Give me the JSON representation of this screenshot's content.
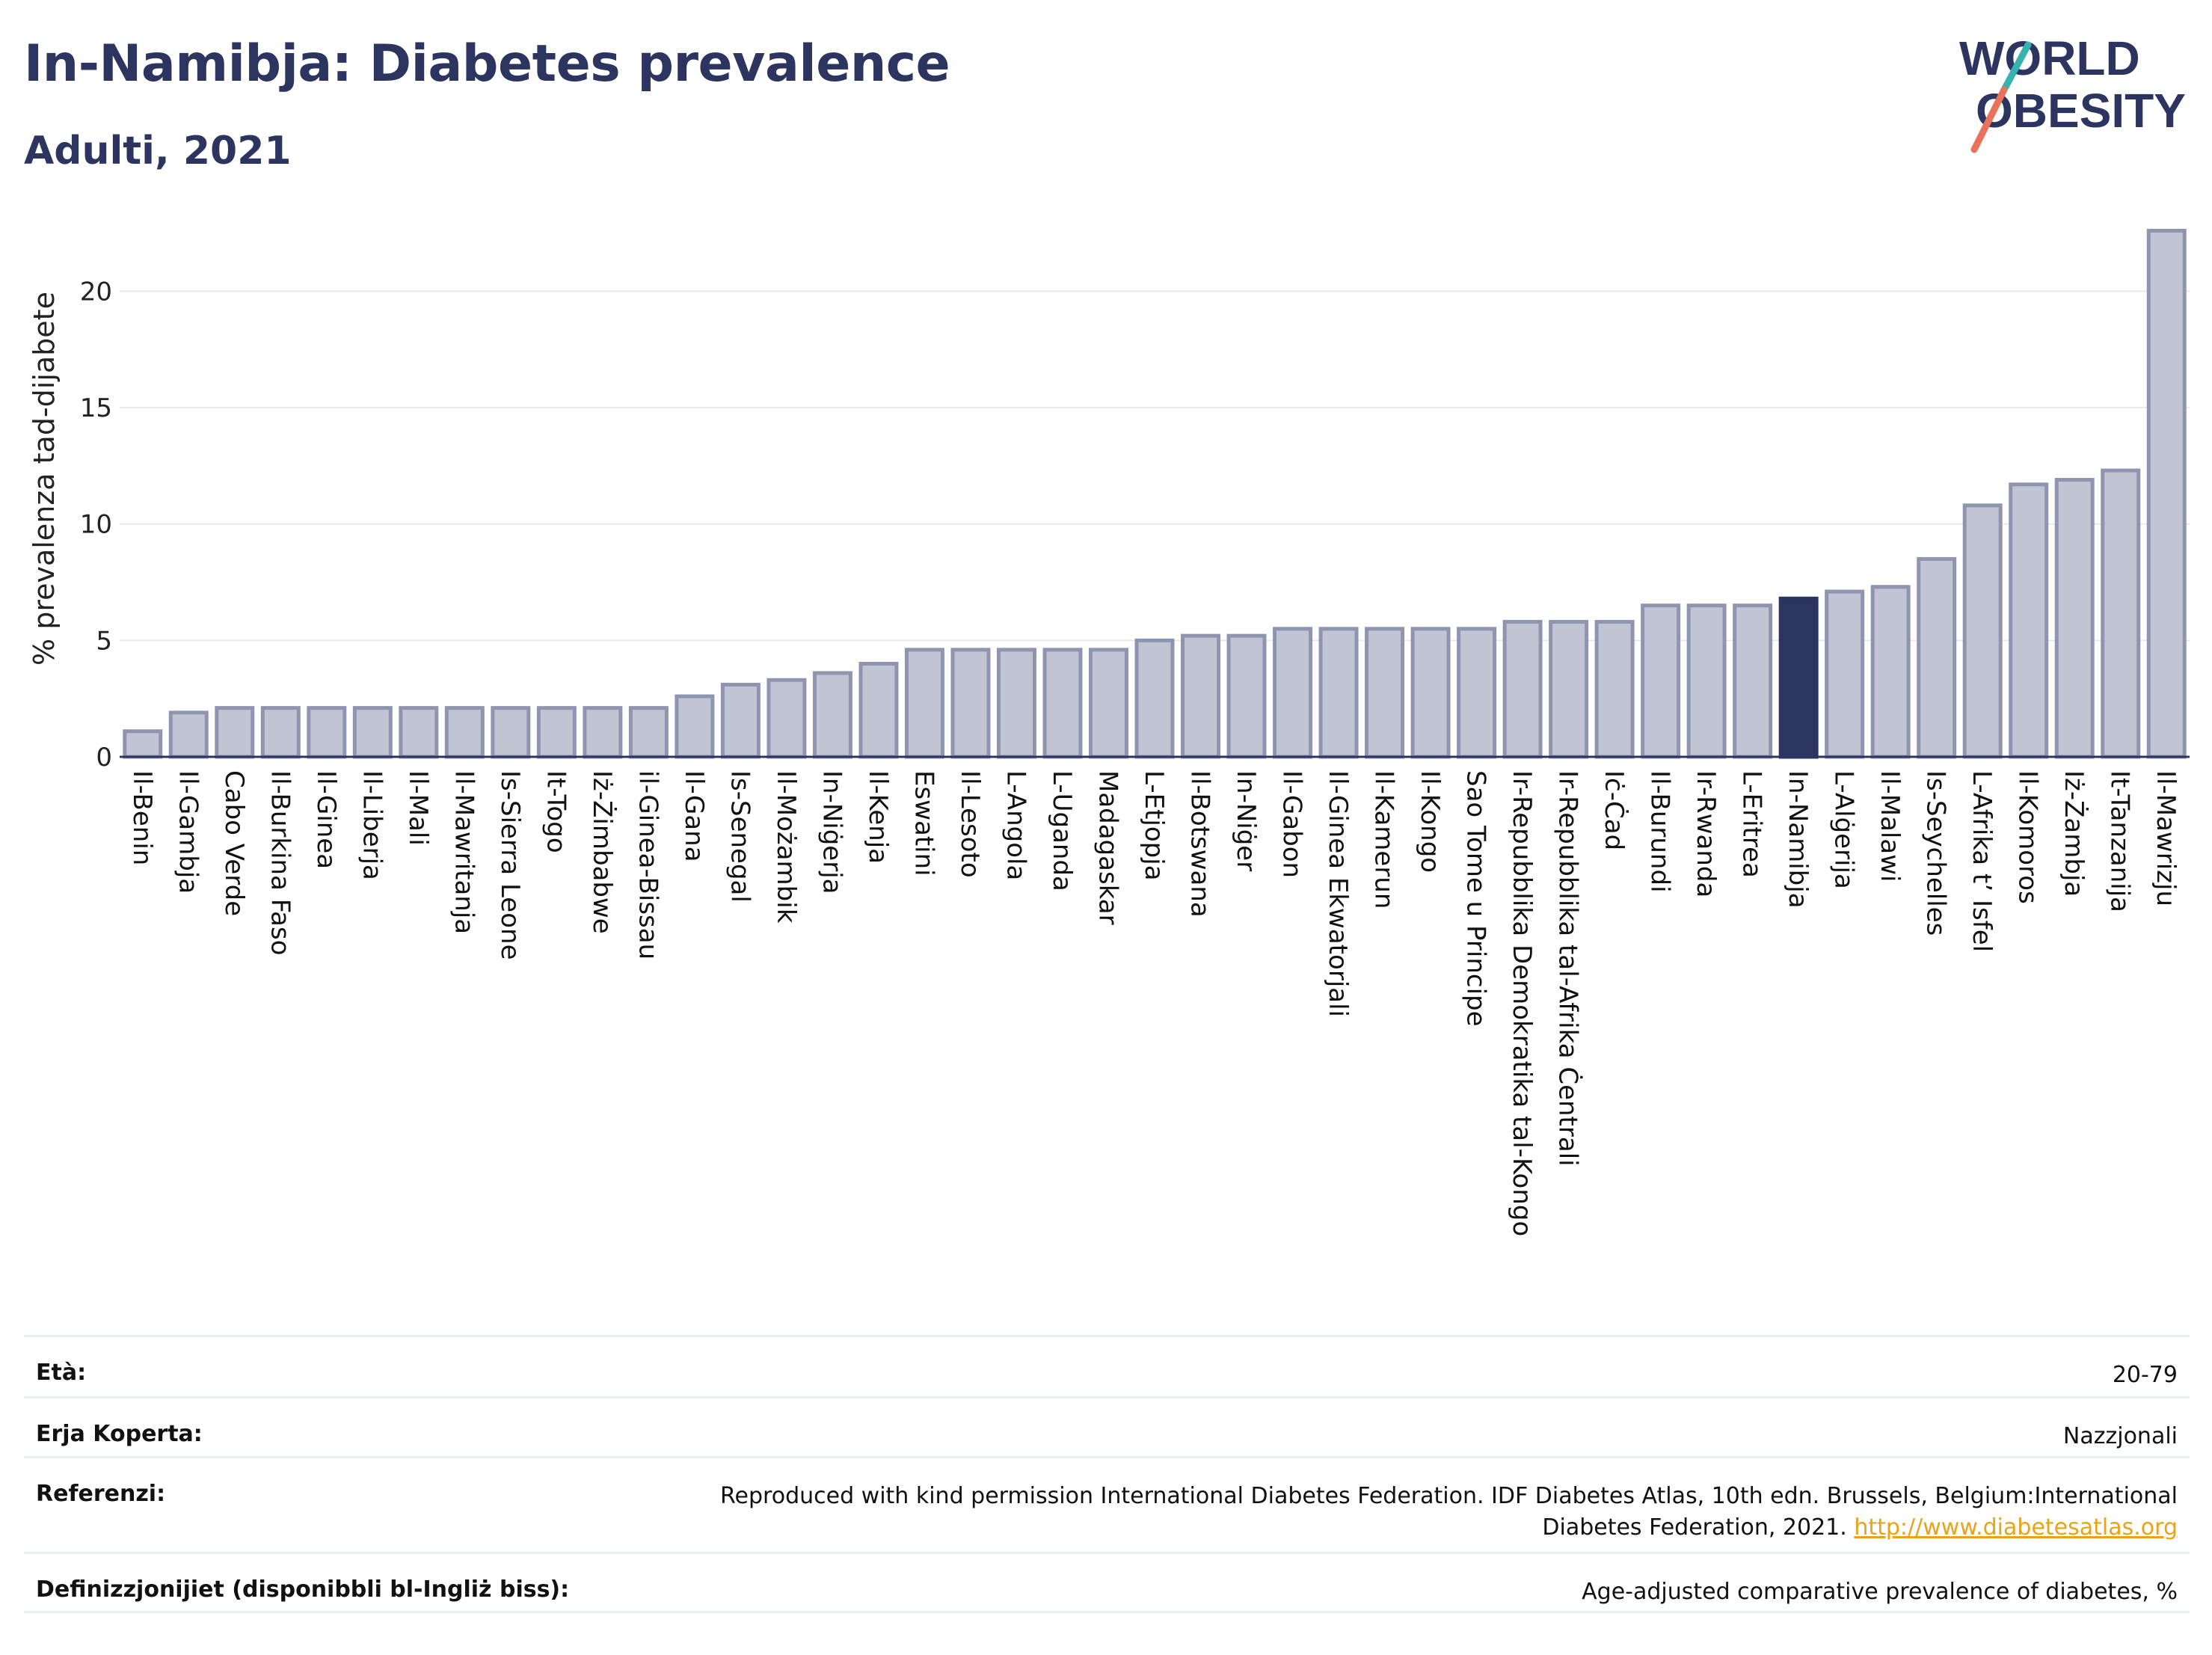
{
  "header": {
    "title": "In-Namibja: Diabetes prevalence",
    "subtitle": "Adulti, 2021"
  },
  "logo": {
    "line1_a": "W",
    "line1_b": "RLD",
    "line2_a": "",
    "line2_b": "BESITY",
    "slash_teal": "#38b2b0",
    "slash_coral": "#e8735a"
  },
  "colors": {
    "bar": "#c0c4d3",
    "bar_stroke": "#8f95b0",
    "highlight": "#2b3560",
    "grid": "#e6e9ee",
    "axis": "#2b3560"
  },
  "chart_data": {
    "type": "bar",
    "ylabel": "% prevalenza tad-dijabete",
    "ylim": [
      0,
      23
    ],
    "yticks": [
      0,
      5,
      10,
      15,
      20
    ],
    "highlight": "In-Namibja",
    "categories": [
      "Il-Benin",
      "Il-Gambja",
      "Cabo Verde",
      "Il-Burkina Faso",
      "Il-Ginea",
      "Il-Liberja",
      "Il-Mali",
      "Il-Mawritanja",
      "Is-Sierra Leone",
      "It-Togo",
      "Iż-Żimbabwe",
      "il-Ginea-Bissau",
      "Il-Gana",
      "Is-Senegal",
      "Il-Możambik",
      "In-Niġerja",
      "Il-Kenja",
      "Eswatini",
      "Il-Lesoto",
      "L-Angola",
      "L-Uganda",
      "Madagaskar",
      "L-Etjopja",
      "Il-Botswana",
      "In-Niġer",
      "Il-Gabon",
      "Il-Ginea Ekwatorjali",
      "Il-Kamerun",
      "Il-Kongo",
      "Sao Tome u Principe",
      "Ir-Repubblika Demokratika tal-Kongo",
      "Ir-Repubblika tal-Afrika Ċentrali",
      "Iċ-Ċad",
      "Il-Burundi",
      "Ir-Rwanda",
      "L-Eritrea",
      "In-Namibja",
      "L-Alġerija",
      "Il-Malawi",
      "Is-Seychelles",
      "L-Afrika t’ Isfel",
      "Il-Komoros",
      "Iż-Żambja",
      "It-Tanzanija",
      "Il-Mawrizju"
    ],
    "values": [
      1.1,
      1.9,
      2.1,
      2.1,
      2.1,
      2.1,
      2.1,
      2.1,
      2.1,
      2.1,
      2.1,
      2.1,
      2.6,
      3.1,
      3.3,
      3.6,
      4.0,
      4.6,
      4.6,
      4.6,
      4.6,
      4.6,
      5.0,
      5.2,
      5.2,
      5.5,
      5.5,
      5.5,
      5.5,
      5.5,
      5.8,
      5.8,
      5.8,
      6.5,
      6.5,
      6.5,
      6.8,
      7.1,
      7.3,
      8.5,
      10.8,
      11.7,
      11.9,
      12.3,
      22.6
    ]
  },
  "footer": {
    "age_label": "Età:",
    "age_value": "20-79",
    "coverage_label": "Erja Koperta:",
    "coverage_value": "Nazzjonali",
    "refs_label": "Referenzi:",
    "refs_line1": "Reproduced with kind permission International Diabetes Federation.  IDF Diabetes Atlas, 10th edn. Brussels, Belgium:International",
    "refs_line2": "Diabetes Federation, 2021. ",
    "refs_link": "http://www.diabetesatlas.org",
    "defs_label": "Definizzjonijiet (disponibbli bl-Ingliż biss):",
    "defs_value": "Age-adjusted comparative prevalence of diabetes, %"
  }
}
